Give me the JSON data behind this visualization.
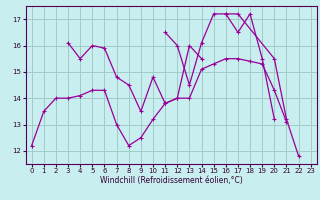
{
  "background_color": "#c8eef0",
  "grid_color": "#a0ccc8",
  "line_color": "#990099",
  "xlabel": "Windchill (Refroidissement éolien,°C)",
  "xlim": [
    -0.5,
    23.5
  ],
  "ylim": [
    11.5,
    17.5
  ],
  "yticks": [
    12,
    13,
    14,
    15,
    16,
    17
  ],
  "xticks": [
    0,
    1,
    2,
    3,
    4,
    5,
    6,
    7,
    8,
    9,
    10,
    11,
    12,
    13,
    14,
    15,
    16,
    17,
    18,
    19,
    20,
    21,
    22,
    23
  ],
  "series": [
    {
      "x": [
        0,
        1,
        2,
        3,
        4,
        5,
        6,
        7,
        8,
        9,
        10,
        11,
        12,
        13,
        14,
        15,
        16,
        17,
        18,
        19,
        20,
        21
      ],
      "y": [
        12.2,
        13.5,
        14.0,
        14.0,
        14.1,
        14.3,
        14.3,
        13.0,
        12.2,
        12.5,
        13.2,
        13.8,
        14.0,
        14.0,
        15.1,
        15.3,
        15.5,
        15.5,
        15.4,
        15.3,
        14.3,
        13.1
      ]
    },
    {
      "x": [
        3,
        4,
        5,
        6,
        7,
        8,
        9,
        10,
        11,
        12,
        13,
        14
      ],
      "y": [
        16.1,
        15.5,
        16.0,
        15.9,
        14.8,
        14.5,
        13.5,
        14.8,
        13.8,
        14.0,
        16.0,
        15.5
      ]
    },
    {
      "x": [
        11,
        12,
        13,
        14,
        15,
        16,
        17,
        18,
        19,
        20
      ],
      "y": [
        16.5,
        16.0,
        14.5,
        16.1,
        17.2,
        17.2,
        16.5,
        17.2,
        15.5,
        13.2
      ]
    },
    {
      "x": [
        16,
        17,
        20,
        21,
        22
      ],
      "y": [
        17.2,
        17.2,
        15.5,
        13.2,
        11.8
      ]
    }
  ]
}
